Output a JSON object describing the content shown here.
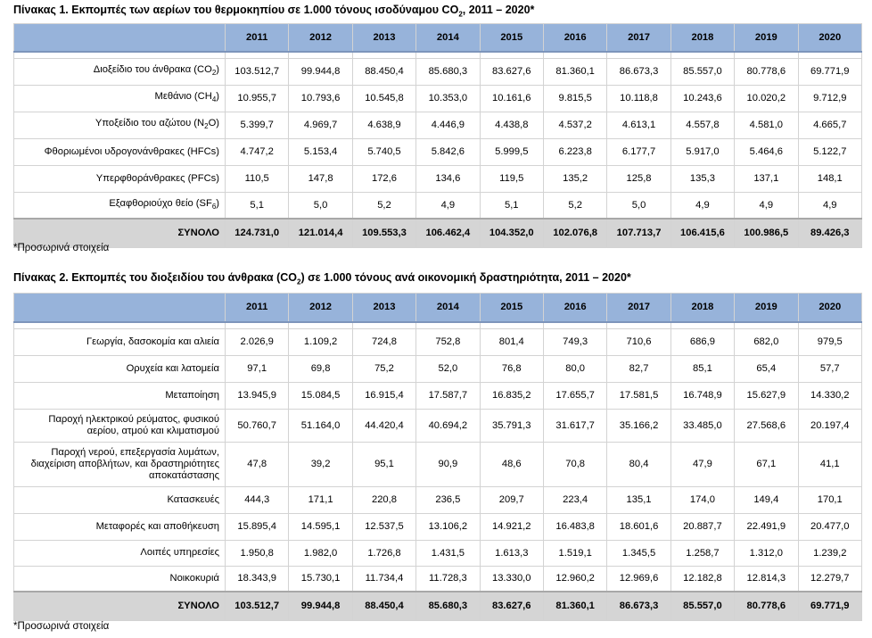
{
  "table1": {
    "caption_pre": "Πίνακας 1. Εκπομπές των αερίων του θερμοκηπίου σε 1.000 τόνους ισοδύναμου CO",
    "caption_sub": "2",
    "caption_post": ", 2011 – 2020*",
    "years": [
      "2011",
      "2012",
      "2013",
      "2014",
      "2015",
      "2016",
      "2017",
      "2018",
      "2019",
      "2020"
    ],
    "rows": [
      {
        "label": "Διοξείδιο του άνθρακα (CO",
        "sub": "2",
        "label_end": ")",
        "values": [
          "103.512,7",
          "99.944,8",
          "88.450,4",
          "85.680,3",
          "83.627,6",
          "81.360,1",
          "86.673,3",
          "85.557,0",
          "80.778,6",
          "69.771,9"
        ]
      },
      {
        "label": "Μεθάνιο (CH",
        "sub": "4",
        "label_end": ")",
        "values": [
          "10.955,7",
          "10.793,6",
          "10.545,8",
          "10.353,0",
          "10.161,6",
          "9.815,5",
          "10.118,8",
          "10.243,6",
          "10.020,2",
          "9.712,9"
        ]
      },
      {
        "label": "Υποξείδιο του αζώτου (N",
        "sub": "2",
        "label_end": "O)",
        "values": [
          "5.399,7",
          "4.969,7",
          "4.638,9",
          "4.446,9",
          "4.438,8",
          "4.537,2",
          "4.613,1",
          "4.557,8",
          "4.581,0",
          "4.665,7"
        ]
      },
      {
        "label": "Φθοριωμένοι υδρογονάνθρακες (HFCs)",
        "sub": "",
        "label_end": "",
        "values": [
          "4.747,2",
          "5.153,4",
          "5.740,5",
          "5.842,6",
          "5.999,5",
          "6.223,8",
          "6.177,7",
          "5.917,0",
          "5.464,6",
          "5.122,7"
        ]
      },
      {
        "label": "Υπερφθοράνθρακες (PFCs)",
        "sub": "",
        "label_end": "",
        "values": [
          "110,5",
          "147,8",
          "172,6",
          "134,6",
          "119,5",
          "135,2",
          "125,8",
          "135,3",
          "137,1",
          "148,1"
        ]
      },
      {
        "label": "Εξαφθοριούχο θείο (SF",
        "sub": "6",
        "label_end": ")",
        "values": [
          "5,1",
          "5,0",
          "5,2",
          "4,9",
          "5,1",
          "5,2",
          "5,0",
          "4,9",
          "4,9",
          "4,9"
        ]
      }
    ],
    "total": {
      "label": "ΣΥΝΟΛΟ",
      "values": [
        "124.731,0",
        "121.014,4",
        "109.553,3",
        "106.462,4",
        "104.352,0",
        "102.076,8",
        "107.713,7",
        "106.415,6",
        "100.986,5",
        "89.426,3"
      ]
    },
    "note": "*Προσωρινά στοιχεία"
  },
  "table2": {
    "caption_pre": "Πίνακας 2. Εκπομπές του διοξειδίου του άνθρακα (CO",
    "caption_sub": "2",
    "caption_post": ") σε 1.000 τόνους ανά οικονομική δραστηριότητα, 2011 – 2020*",
    "years": [
      "2011",
      "2012",
      "2013",
      "2014",
      "2015",
      "2016",
      "2017",
      "2018",
      "2019",
      "2020"
    ],
    "rows": [
      {
        "label": "Γεωργία, δασοκομία και αλιεία",
        "values": [
          "2.026,9",
          "1.109,2",
          "724,8",
          "752,8",
          "801,4",
          "749,3",
          "710,6",
          "686,9",
          "682,0",
          "979,5"
        ]
      },
      {
        "label": "Ορυχεία και λατομεία",
        "values": [
          "97,1",
          "69,8",
          "75,2",
          "52,0",
          "76,8",
          "80,0",
          "82,7",
          "85,1",
          "65,4",
          "57,7"
        ]
      },
      {
        "label": "Μεταποίηση",
        "values": [
          "13.945,9",
          "15.084,5",
          "16.915,4",
          "17.587,7",
          "16.835,2",
          "17.655,7",
          "17.581,5",
          "16.748,9",
          "15.627,9",
          "14.330,2"
        ]
      },
      {
        "label": "Παροχή ηλεκτρικού ρεύματος, φυσικού αερίου, ατμού και κλιματισμού",
        "values": [
          "50.760,7",
          "51.164,0",
          "44.420,4",
          "40.694,2",
          "35.791,3",
          "31.617,7",
          "35.166,2",
          "33.485,0",
          "27.568,6",
          "20.197,4"
        ]
      },
      {
        "label": "Παροχή νερού, επεξεργασία λυμάτων, διαχείριση αποβλήτων, και δραστηριότητες αποκατάστασης",
        "values": [
          "47,8",
          "39,2",
          "95,1",
          "90,9",
          "48,6",
          "70,8",
          "80,4",
          "47,9",
          "67,1",
          "41,1"
        ]
      },
      {
        "label": "Κατασκευές",
        "values": [
          "444,3",
          "171,1",
          "220,8",
          "236,5",
          "209,7",
          "223,4",
          "135,1",
          "174,0",
          "149,4",
          "170,1"
        ]
      },
      {
        "label": "Μεταφορές και αποθήκευση",
        "values": [
          "15.895,4",
          "14.595,1",
          "12.537,5",
          "13.106,2",
          "14.921,2",
          "16.483,8",
          "18.601,6",
          "20.887,7",
          "22.491,9",
          "20.477,0"
        ]
      },
      {
        "label": "Λοιπές υπηρεσίες",
        "values": [
          "1.950,8",
          "1.982,0",
          "1.726,8",
          "1.431,5",
          "1.613,3",
          "1.519,1",
          "1.345,5",
          "1.258,7",
          "1.312,0",
          "1.239,2"
        ]
      },
      {
        "label": "Νοικοκυριά",
        "values": [
          "18.343,9",
          "15.730,1",
          "11.734,4",
          "11.728,3",
          "13.330,0",
          "12.960,2",
          "12.969,6",
          "12.182,8",
          "12.814,3",
          "12.279,7"
        ]
      }
    ],
    "total": {
      "label": "ΣΥΝΟΛΟ",
      "values": [
        "103.512,7",
        "99.944,8",
        "88.450,4",
        "85.680,3",
        "83.627,6",
        "81.360,1",
        "86.673,3",
        "85.557,0",
        "80.778,6",
        "69.771,9"
      ]
    },
    "note": "*Προσωρινά στοιχεία"
  }
}
